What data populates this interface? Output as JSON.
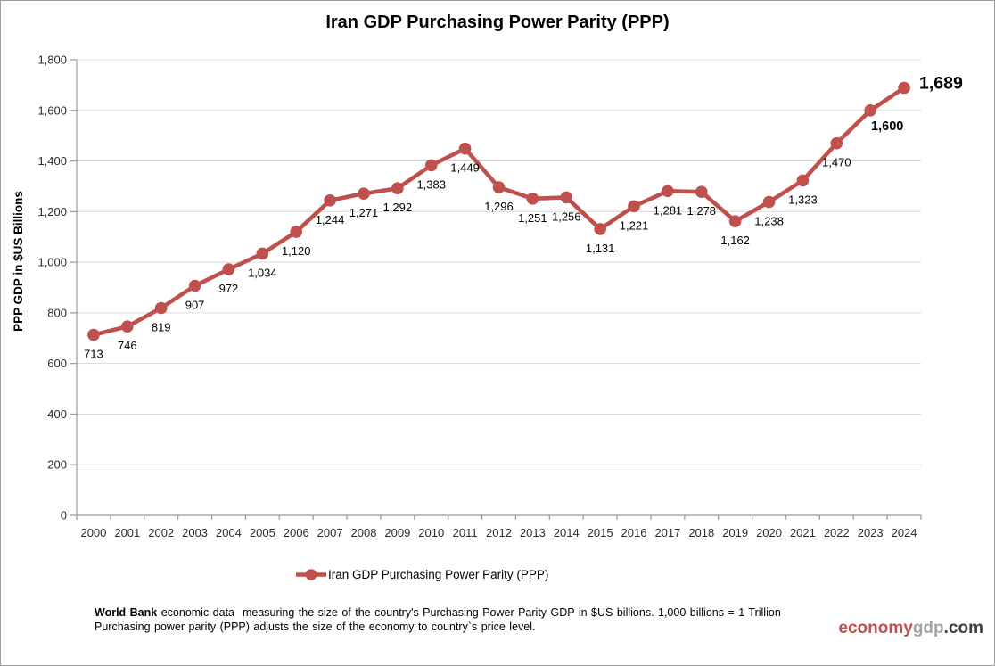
{
  "title": "Iran GDP Purchasing Power Parity (PPP)",
  "y_axis_title": "PPP GDP in $US Billions",
  "legend": {
    "label": "Iran GDP Purchasing Power Parity (PPP)"
  },
  "footer": {
    "bold_lead": "World Bank",
    "line1_rest": " economic data  measuring the size of the country's Purchasing Power Parity GDP in $US billions. 1,000 billions = 1 Trillion",
    "line2": "Purchasing power parity (PPP) adjusts the size of the economy to country`s price level."
  },
  "watermark": {
    "part_red": "economy",
    "part_gray": "gdp",
    "part_dark": ".com"
  },
  "colors": {
    "series": "#c0504d",
    "grid": "#d9d9d9",
    "axis": "#9a9a9a",
    "tick_text": "#2b2b2b",
    "label_text": "#000000",
    "watermark_red": "#c0504d",
    "watermark_gray": "#a3a3a3",
    "watermark_dark": "#3d3d3d"
  },
  "chart_data": {
    "type": "line",
    "title": "Iran GDP Purchasing Power Parity (PPP)",
    "xlabel": "",
    "ylabel": "PPP GDP in $US Billions",
    "x": [
      2000,
      2001,
      2002,
      2003,
      2004,
      2005,
      2006,
      2007,
      2008,
      2009,
      2010,
      2011,
      2012,
      2013,
      2014,
      2015,
      2016,
      2017,
      2018,
      2019,
      2020,
      2021,
      2022,
      2023,
      2024
    ],
    "series": [
      {
        "name": "Iran GDP Purchasing Power Parity (PPP)",
        "values": [
          713,
          746,
          819,
          907,
          972,
          1034,
          1120,
          1244,
          1271,
          1292,
          1383,
          1449,
          1296,
          1251,
          1256,
          1131,
          1221,
          1281,
          1278,
          1162,
          1238,
          1323,
          1470,
          1600,
          1689
        ]
      }
    ],
    "ylim": [
      0,
      1800
    ],
    "ytick_step": 200,
    "grid": true,
    "legend_position": "bottom",
    "data_labels": true
  }
}
